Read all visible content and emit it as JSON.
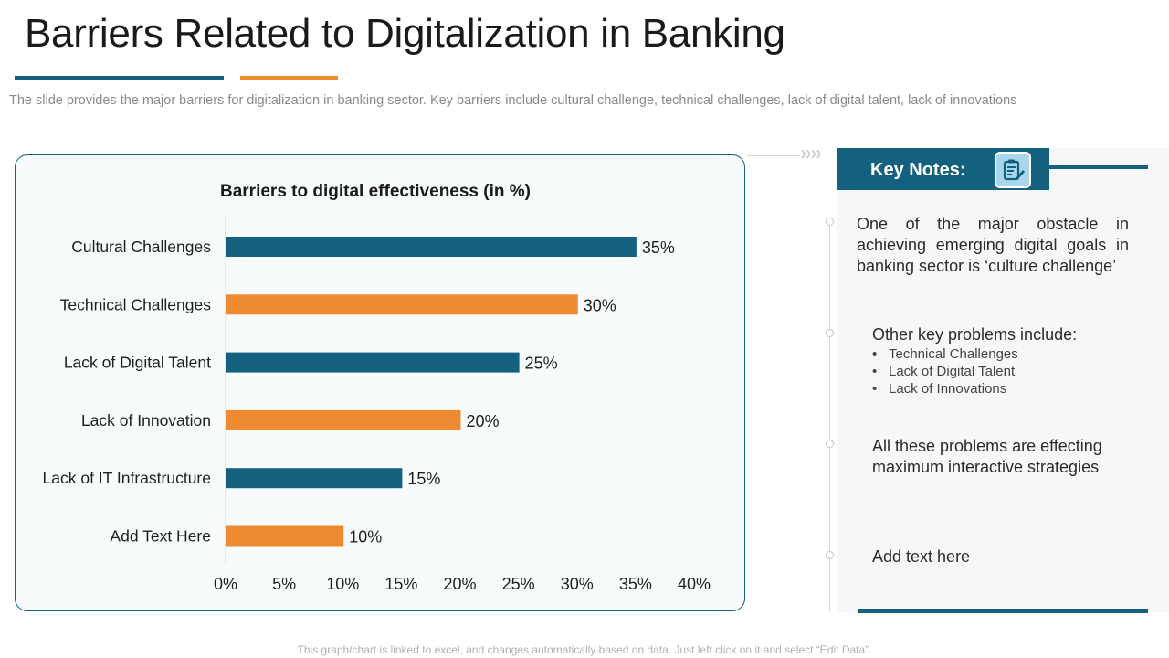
{
  "slide": {
    "title": "Barriers Related to Digitalization in Banking",
    "subtitle": "The slide provides the major barriers for digitalization in banking sector. Key barriers include cultural  challenge, technical  challenges, lack of digital talent, lack of innovations",
    "footer": "This graph/chart is linked to excel, and changes automatically based on data. Just left click on it and select “Edit Data”."
  },
  "colors": {
    "blue": "#14607f",
    "orange": "#ee8a31"
  },
  "chart_data": {
    "type": "bar",
    "orientation": "horizontal",
    "title": "Barriers to digital effectiveness (in %)",
    "xlabel": "",
    "ylabel": "",
    "categories": [
      "Cultural Challenges",
      "Technical Challenges",
      "Lack of Digital Talent",
      "Lack of Innovation",
      "Lack of IT Infrastructure",
      "Add Text Here"
    ],
    "values": [
      35,
      30,
      25,
      20,
      15,
      10
    ],
    "data_labels": [
      "35%",
      "30%",
      "25%",
      "20%",
      "15%",
      "10%"
    ],
    "bar_colors": [
      "#14607f",
      "#ee8a31",
      "#14607f",
      "#ee8a31",
      "#14607f",
      "#ee8a31"
    ],
    "xlim": [
      0,
      40
    ],
    "x_ticks": [
      0,
      5,
      10,
      15,
      20,
      25,
      30,
      35,
      40
    ],
    "x_tick_labels": [
      "0%",
      "5%",
      "10%",
      "15%",
      "20%",
      "25%",
      "30%",
      "35%",
      "40%"
    ],
    "grid": false,
    "legend": "none"
  },
  "key_notes": {
    "header": "Key Notes:",
    "icon": "clipboard-edit-icon",
    "note1": "One of the major obstacle in achieving emerging digital goals in banking sector is ‘culture challenge’",
    "note2_intro": "Other key problems include:",
    "note2_items": [
      "Technical Challenges",
      "Lack of Digital Talent",
      "Lack of Innovations"
    ],
    "note3": "All these problems are effecting maximum interactive strategies",
    "note4": "Add text here"
  }
}
